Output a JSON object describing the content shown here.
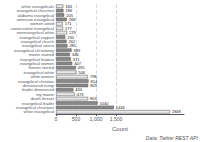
{
  "chart_data": {
    "type": "bar",
    "orientation": "horizontal",
    "categories": [
      "white evangelicals",
      "evangelical churches",
      "alabama evangelical",
      "american evangelical",
      "women voted",
      "conservative evangelical",
      "nonevangelical white",
      "evangelical support",
      "evangelical church",
      "evangelical voters",
      "evangelical christianity",
      "moore stained",
      "evangelical leaders",
      "evangelical women",
      "threats started",
      "evangelical white",
      "white women",
      "evangelical christian",
      "denounced trump",
      "leader denounced",
      "roy moore",
      "death threats",
      "evangelical leader",
      "evangelical christians",
      "white evangelical"
    ],
    "values": [
      184,
      186,
      205,
      268,
      171,
      177,
      279,
      230,
      262,
      285,
      389,
      346,
      371,
      407,
      495,
      506,
      798,
      814,
      805,
      434,
      473,
      803,
      1040,
      1446,
      2848
    ],
    "colors": [
      "#e8e8e8",
      "#888888",
      "#888888",
      "#888888",
      "#e8e8e8",
      "#e8e8e8",
      "#e8e8e8",
      "#888888",
      "#888888",
      "#888888",
      "#888888",
      "#888888",
      "#888888",
      "#888888",
      "#888888",
      "#e8e8e8",
      "#e8e8e8",
      "#888888",
      "#888888",
      "#888888",
      "#e8e8e8",
      "#e8e8e8",
      "#888888",
      "#888888",
      "#e8e8e8"
    ],
    "xlabel": "Count",
    "xlim": [
      0,
      3200
    ],
    "xticks": [
      0,
      500,
      1000,
      1500
    ],
    "grid": true,
    "data_labels": true,
    "annotations": [
      "Data: Twitter REST API"
    ]
  }
}
